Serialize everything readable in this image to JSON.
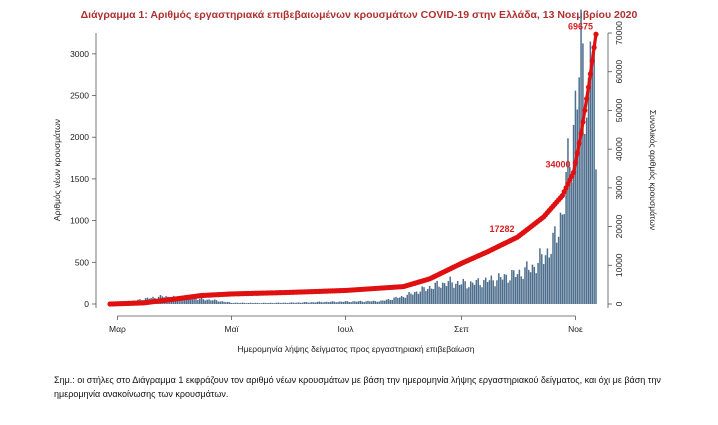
{
  "chart_data": {
    "type": "bar",
    "title": "Διάγραμμα 1: Αριθμός εργαστηριακά επιβεβαιωμένων κρουσμάτων COVID-19 στην Ελλάδα, 13 Νοεμβρίου 2020",
    "xlabel": "Ημερομηνία λήψης δείγματος προς εργαστηριακή επιβεβαίωση",
    "ylabel": "Αριθμός νέων κρουσμάτων",
    "y2label": "Συνολικός αριθμός κρουσμάτων",
    "x_tick_labels": [
      "Μαρ",
      "Μαϊ",
      "Ιουλ",
      "Σεπ",
      "Νοε"
    ],
    "ylim": [
      0,
      3250
    ],
    "y_ticks": [
      0,
      500,
      1000,
      1500,
      2000,
      2500,
      3000
    ],
    "y2lim": [
      0,
      70000
    ],
    "y2_ticks": [
      0,
      10000,
      20000,
      30000,
      40000,
      50000,
      60000,
      70000
    ],
    "date_start": "2020-02-26",
    "date_end": "2020-11-12",
    "month_ticks": [
      "2020-03-01",
      "2020-05-01",
      "2020-07-01",
      "2020-09-01",
      "2020-11-01"
    ],
    "daily_anchors": [
      [
        "2020-02-26",
        3
      ],
      [
        "2020-03-05",
        15
      ],
      [
        "2020-03-15",
        60
      ],
      [
        "2020-03-25",
        90
      ],
      [
        "2020-04-05",
        70
      ],
      [
        "2020-04-20",
        50
      ],
      [
        "2020-05-01",
        15
      ],
      [
        "2020-05-15",
        12
      ],
      [
        "2020-06-01",
        15
      ],
      [
        "2020-06-20",
        25
      ],
      [
        "2020-07-05",
        30
      ],
      [
        "2020-07-20",
        35
      ],
      [
        "2020-08-01",
        90
      ],
      [
        "2020-08-15",
        200
      ],
      [
        "2020-08-25",
        260
      ],
      [
        "2020-09-05",
        240
      ],
      [
        "2020-09-20",
        300
      ],
      [
        "2020-10-01",
        360
      ],
      [
        "2020-10-10",
        450
      ],
      [
        "2020-10-20",
        700
      ],
      [
        "2020-10-25",
        1100
      ],
      [
        "2020-10-30",
        1900
      ],
      [
        "2020-11-02",
        2600
      ],
      [
        "2020-11-05",
        2950
      ],
      [
        "2020-11-07",
        2500
      ],
      [
        "2020-11-08",
        2400
      ],
      [
        "2020-11-09",
        3150
      ],
      [
        "2020-11-10",
        3050
      ],
      [
        "2020-11-11",
        2700
      ],
      [
        "2020-11-12",
        1400
      ]
    ],
    "bar_color": "#4e6e8e",
    "cumulative_series_name": "Συνολικός αριθμός κρουσμάτων",
    "cumulative_color": "#e01010",
    "cumulative_anchors": [
      [
        "2020-02-26",
        0
      ],
      [
        "2020-03-15",
        300
      ],
      [
        "2020-04-01",
        1300
      ],
      [
        "2020-04-15",
        2200
      ],
      [
        "2020-05-01",
        2600
      ],
      [
        "2020-06-01",
        3000
      ],
      [
        "2020-07-01",
        3500
      ],
      [
        "2020-08-01",
        4500
      ],
      [
        "2020-08-15",
        6500
      ],
      [
        "2020-09-01",
        10500
      ],
      [
        "2020-09-15",
        13500
      ],
      [
        "2020-10-01",
        17282
      ],
      [
        "2020-10-15",
        22500
      ],
      [
        "2020-10-25",
        28000
      ],
      [
        "2020-10-31",
        34000
      ],
      [
        "2020-11-04",
        44000
      ],
      [
        "2020-11-08",
        56000
      ],
      [
        "2020-11-12",
        69675
      ]
    ],
    "annotations": [
      {
        "label": "17282",
        "date": "2020-10-01",
        "value": 17282
      },
      {
        "label": "34000",
        "date": "2020-10-31",
        "value": 34000
      },
      {
        "label": "69675",
        "date": "2020-11-12",
        "value": 69675
      }
    ]
  },
  "note": "Σημ.: οι στήλες στο Διάγραμμα 1 εκφράζουν τον αριθμό νέων κρουσμάτων με βάση την ημερομηνία λήψης εργαστηριακού δείγματος, και όχι με βάση την ημερομηνία ανακοίνωσης των κρουσμάτων."
}
